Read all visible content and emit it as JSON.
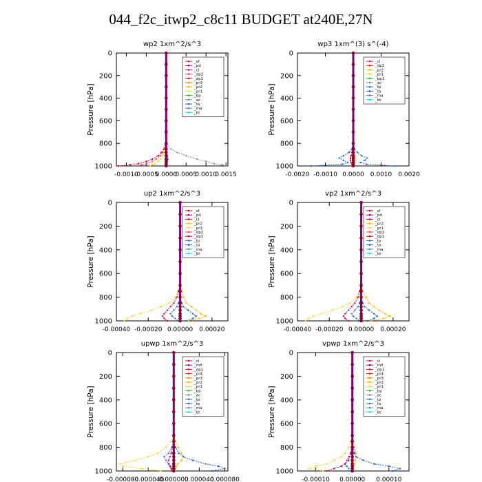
{
  "page_title": "044_f2c_itwp2_c8c11  BUDGET at240E,27N",
  "ylabel": "Pressure [hPa]",
  "y_ticks": [
    0,
    200,
    400,
    600,
    800,
    1000
  ],
  "colors": {
    "_wp2_ta": "#1e5bd8",
    "_wp2_pr": "#ff8c00",
    "_wp2_ac": "#2ecc40",
    "_wp2_dp": "#e0003c",
    "_bt": "#00d8ff",
    "_ma": "#5f7f9f",
    "_tp": "#2f6fd0",
    "_cl": "#e00060",
    "_pd": "#7f007f",
    "_sf": "#c00030",
    "_dp1": "#d4003a",
    "_dp2": "#ff4060",
    "_pr1": "#ffd030",
    "_pr2": "#ffb300",
    "_pr3": "#ff7f00",
    "_pr4": "#ff2000",
    "_bp": "#20c020",
    "_bp1": "#20c020",
    "_mfl": "#800060",
    "_ta": "#1e5bd8"
  },
  "chart_data": [
    {
      "type": "line",
      "title": "wp2   1xm^2/s^3",
      "xlim": [
        -0.00125,
        0.00155
      ],
      "ylim": [
        1000,
        0
      ],
      "xticks": [
        -0.001,
        -0.0005,
        0.0,
        0.0005,
        0.001,
        0.0015
      ],
      "xtick_labels": [
        "-0.0010",
        "-0.0005",
        "0.0000",
        "0.0005",
        "0.0010",
        "0.0015"
      ],
      "pressure": [
        0,
        100,
        200,
        300,
        400,
        500,
        600,
        700,
        800,
        850,
        880,
        910,
        940,
        960,
        980,
        990,
        1000
      ],
      "legend": [
        "_sf",
        "_pd",
        "_cl",
        "_dp2",
        "_dp1",
        "_pr3",
        "_pr2",
        "_pr1",
        "_bp",
        "_ac",
        "_ta",
        "_ma",
        "_bt"
      ],
      "series": [
        {
          "name": "_ac",
          "values": [
            0,
            0,
            0,
            0,
            0,
            0,
            0,
            0,
            2e-05,
            0.00012,
            0.00028,
            0.0005,
            0.00078,
            0.001,
            0.0012,
            0.0014,
            0.0015
          ]
        },
        {
          "name": "_dp1",
          "values": [
            0,
            0,
            0,
            0,
            0,
            0,
            0,
            0,
            -2e-05,
            -6e-05,
            -0.00012,
            -0.0002,
            -0.00035,
            -0.0005,
            -0.0007,
            -0.0009,
            -0.0012
          ]
        },
        {
          "name": "_dp2",
          "values": [
            0,
            0,
            0,
            0,
            0,
            0,
            0,
            0,
            -2e-05,
            -4e-05,
            -8e-05,
            -0.00015,
            -0.00025,
            -0.00035,
            -0.0005,
            -0.00062,
            -0.0007
          ]
        },
        {
          "name": "_pr1",
          "values": [
            0,
            0,
            0,
            0,
            0,
            0,
            0,
            0,
            -1e-05,
            -3e-05,
            -5e-05,
            -9e-05,
            -0.00014,
            -0.0002,
            -0.00028,
            -0.00035,
            -0.0004
          ]
        },
        {
          "name": "_ta",
          "values": [
            0,
            0,
            0,
            0,
            0,
            0,
            0,
            0,
            0,
            1e-05,
            2e-05,
            3e-05,
            4e-05,
            3e-05,
            2e-05,
            1e-05,
            0
          ]
        },
        {
          "name": "_pd",
          "values": [
            0,
            0,
            0,
            0,
            0,
            0,
            0,
            0,
            0,
            0,
            0,
            0,
            0,
            0,
            0,
            0,
            0
          ]
        }
      ]
    },
    {
      "type": "line",
      "title": "wp3   1xm^(3) s^(-4)",
      "xlim": [
        -0.002,
        0.002
      ],
      "ylim": [
        1000,
        0
      ],
      "xticks": [
        -0.002,
        -0.001,
        0.0,
        0.001,
        0.002
      ],
      "xtick_labels": [
        "-0.0020",
        "-0.0010",
        "0.0000",
        "0.0010",
        "0.0020"
      ],
      "pressure": [
        0,
        100,
        200,
        300,
        400,
        500,
        600,
        700,
        800,
        850,
        880,
        910,
        930,
        950,
        970,
        985,
        1000
      ],
      "legend": [
        "_cl",
        "_dp1",
        "_pr2",
        "_pr1",
        "_bp1",
        "_ac",
        "_tp",
        "_ta",
        "_ma",
        "_bt"
      ],
      "series": [
        {
          "name": "_tp",
          "values": [
            0,
            0,
            0,
            0,
            0,
            0,
            0,
            0,
            0,
            5e-05,
            0.00015,
            0.0003,
            0.0005,
            0.00042,
            0.00025,
            0.00048,
            0.0015
          ]
        },
        {
          "name": "_ta",
          "values": [
            0,
            0,
            0,
            0,
            0,
            0,
            0,
            0,
            0,
            -5e-05,
            -0.00015,
            -0.00035,
            -0.0005,
            -0.00035,
            -0.0002,
            -0.0004,
            -0.0015
          ]
        },
        {
          "name": "_dp1",
          "values": [
            0,
            0,
            0,
            0,
            0,
            0,
            0,
            0,
            0,
            -3e-05,
            -5e-05,
            -8e-05,
            -0.0001,
            -0.0001,
            -8e-05,
            -5e-05,
            -3e-05
          ]
        },
        {
          "name": "_pr1",
          "values": [
            0,
            0,
            0,
            0,
            0,
            0,
            0,
            0,
            0,
            2e-05,
            4e-05,
            6e-05,
            8e-05,
            8e-05,
            6e-05,
            4e-05,
            2e-05
          ]
        },
        {
          "name": "_cl",
          "values": [
            0,
            0,
            0,
            0,
            0,
            0,
            0,
            0,
            0,
            0,
            0,
            0,
            0,
            0,
            0,
            0,
            0
          ]
        }
      ]
    },
    {
      "type": "line",
      "title": "up2   1xm^2/s^3",
      "xlim": [
        -0.0004,
        0.0003
      ],
      "ylim": [
        1000,
        0
      ],
      "xticks": [
        -0.0004,
        -0.0002,
        0.0,
        0.0002
      ],
      "xtick_labels": [
        "-0.00040",
        "-0.00020",
        "0.00000",
        "0.00020"
      ],
      "pressure": [
        0,
        100,
        200,
        300,
        400,
        500,
        600,
        700,
        750,
        800,
        850,
        880,
        910,
        940,
        960,
        980,
        1000
      ],
      "legend": [
        "_sf",
        "_pd",
        "_cl",
        "_pr2",
        "_pr1",
        "_dp2",
        "_dp1",
        "_tp",
        "_ta",
        "_ma",
        "_bt"
      ],
      "series": [
        {
          "name": "_pr1",
          "values": [
            0,
            0,
            0,
            0,
            0,
            0,
            0,
            0,
            -1e-05,
            -3e-05,
            -7e-05,
            -0.00012,
            -0.00018,
            -0.00025,
            -0.0003,
            -0.00033,
            -0.00035
          ]
        },
        {
          "name": "_pr2",
          "values": [
            0,
            0,
            0,
            0,
            0,
            0,
            0,
            0,
            1e-05,
            2e-05,
            4e-05,
            7e-05,
            0.0001,
            0.00013,
            0.00016,
            0.00012,
            5e-05
          ]
        },
        {
          "name": "_dp1",
          "values": [
            0,
            0,
            0,
            0,
            0,
            0,
            0,
            0,
            -1e-05,
            -2e-05,
            -4e-05,
            -6e-05,
            -8e-05,
            -0.0001,
            -0.00011,
            -0.0001,
            -8e-05
          ]
        },
        {
          "name": "_ta",
          "values": [
            0,
            0,
            0,
            0,
            0,
            0,
            0,
            0,
            0,
            0,
            1e-05,
            2e-05,
            5e-05,
            8e-05,
            0.0001,
            8e-05,
            4e-05
          ]
        },
        {
          "name": "_tp",
          "values": [
            0,
            0,
            0,
            0,
            0,
            0,
            0,
            0,
            0,
            0,
            -1e-05,
            -2e-05,
            -4e-05,
            -6e-05,
            -5e-05,
            -3e-05,
            -1e-05
          ]
        },
        {
          "name": "_pd",
          "values": [
            0,
            0,
            0,
            0,
            0,
            0,
            0,
            0,
            0,
            0,
            0,
            0,
            0,
            0,
            0,
            0,
            0
          ]
        }
      ]
    },
    {
      "type": "line",
      "title": "vp2   1xm^2/s^3",
      "xlim": [
        -0.0004,
        0.0003
      ],
      "ylim": [
        1000,
        0
      ],
      "xticks": [
        -0.0004,
        -0.0002,
        0.0,
        0.0002
      ],
      "xtick_labels": [
        "-0.00040",
        "-0.00020",
        "0.00000",
        "0.00020"
      ],
      "pressure": [
        0,
        100,
        200,
        300,
        400,
        500,
        600,
        700,
        750,
        800,
        850,
        880,
        910,
        940,
        960,
        980,
        1000
      ],
      "legend": [
        "_sf",
        "_pd",
        "_cl",
        "_pr2",
        "_pr1",
        "_dp2",
        "_dp1",
        "_tp",
        "_ta",
        "_ma",
        "_bt"
      ],
      "series": [
        {
          "name": "_pr1",
          "values": [
            0,
            0,
            0,
            0,
            0,
            0,
            0,
            0,
            -1e-05,
            -3e-05,
            -7e-05,
            -0.00012,
            -0.00018,
            -0.00025,
            -0.0003,
            -0.00033,
            -0.00035
          ]
        },
        {
          "name": "_pr2",
          "values": [
            0,
            0,
            0,
            0,
            0,
            0,
            0,
            0,
            1e-05,
            3e-05,
            5e-05,
            8e-05,
            0.00011,
            0.00015,
            0.00018,
            0.00014,
            6e-05
          ]
        },
        {
          "name": "_dp1",
          "values": [
            0,
            0,
            0,
            0,
            0,
            0,
            0,
            0,
            -1e-05,
            -2e-05,
            -4e-05,
            -6e-05,
            -8e-05,
            -0.0001,
            -0.00011,
            -0.0001,
            -8e-05
          ]
        },
        {
          "name": "_ta",
          "values": [
            0,
            0,
            0,
            0,
            0,
            0,
            0,
            0,
            0,
            0,
            1e-05,
            2e-05,
            5e-05,
            8e-05,
            0.0001,
            8e-05,
            4e-05
          ]
        },
        {
          "name": "_tp",
          "values": [
            0,
            0,
            0,
            0,
            0,
            0,
            0,
            0,
            0,
            0,
            -1e-05,
            -2e-05,
            -4e-05,
            -6e-05,
            -5e-05,
            -3e-05,
            -1e-05
          ]
        },
        {
          "name": "_pd",
          "values": [
            0,
            0,
            0,
            0,
            0,
            0,
            0,
            0,
            0,
            0,
            0,
            0,
            0,
            0,
            0,
            0,
            0
          ]
        }
      ]
    },
    {
      "type": "line",
      "title": "upwp   1xm^2/s^3",
      "xlim": [
        -9e-05,
        8.5e-05
      ],
      "ylim": [
        1000,
        0
      ],
      "xticks": [
        -8e-05,
        -4e-05,
        0.0,
        4e-05,
        8e-05
      ],
      "xtick_labels": [
        "-0.000080",
        "-0.000040",
        "0.000000",
        "0.000040",
        "0.000080"
      ],
      "pressure": [
        0,
        100,
        200,
        300,
        400,
        500,
        600,
        700,
        750,
        800,
        850,
        880,
        910,
        940,
        960,
        980,
        1000
      ],
      "legend": [
        "_cl",
        "_mfl",
        "_dp1",
        "_pr4",
        "_pr3",
        "_pr2",
        "_pr1",
        "_bp",
        "_ac",
        "_tp",
        "_ta",
        "_ma",
        "_bt"
      ],
      "series": [
        {
          "name": "_pr1",
          "values": [
            0,
            0,
            0,
            0,
            0,
            0,
            0,
            0,
            -5e-06,
            -1.2e-05,
            -2.5e-05,
            -4e-05,
            -6e-05,
            -8.5e-05,
            -8e-05,
            -5e-05,
            -2e-05
          ]
        },
        {
          "name": "_pr2",
          "values": [
            0,
            0,
            0,
            0,
            0,
            0,
            0,
            0,
            3e-06,
            7e-06,
            1.2e-05,
            1.5e-05,
            1.2e-05,
            6e-06,
            4e-06,
            3e-06,
            2e-06
          ]
        },
        {
          "name": "_ta",
          "values": [
            0,
            0,
            0,
            0,
            0,
            0,
            0,
            0,
            0,
            3e-06,
            8e-06,
            1.5e-05,
            3e-05,
            5e-05,
            7e-05,
            8e-05,
            6e-05
          ]
        },
        {
          "name": "_tp",
          "values": [
            0,
            0,
            0,
            0,
            0,
            0,
            0,
            0,
            0,
            -3e-06,
            -8e-06,
            -1.5e-05,
            -1.2e-05,
            -8e-06,
            -5e-06,
            -3e-06,
            -2e-06
          ]
        },
        {
          "name": "_dp1",
          "values": [
            0,
            0,
            0,
            0,
            0,
            0,
            0,
            0,
            0,
            -2e-06,
            -4e-06,
            -6e-06,
            -8e-06,
            -8e-06,
            -6e-06,
            -4e-06,
            -3e-06
          ]
        },
        {
          "name": "_mfl",
          "values": [
            0,
            0,
            0,
            0,
            0,
            0,
            0,
            0,
            0,
            0,
            0,
            0,
            0,
            0,
            0,
            0,
            0
          ]
        }
      ]
    },
    {
      "type": "line",
      "title": "vpwp   1xm^2/s^3",
      "xlim": [
        -0.00015,
        0.000155
      ],
      "ylim": [
        1000,
        0
      ],
      "xticks": [
        -0.0001,
        0.0,
        0.0001
      ],
      "xtick_labels": [
        "-0.00010",
        "0.00000",
        "0.00010"
      ],
      "pressure": [
        0,
        100,
        200,
        300,
        400,
        500,
        600,
        700,
        750,
        800,
        850,
        880,
        910,
        940,
        960,
        980,
        1000
      ],
      "legend": [
        "_cl",
        "_mfl",
        "_dp1",
        "_pr4",
        "_pr3",
        "_pr2",
        "_pr1",
        "_bp",
        "_ac",
        "_tp",
        "_ta",
        "_ma",
        "_bt"
      ],
      "series": [
        {
          "name": "_pr1",
          "values": [
            0,
            0,
            0,
            0,
            0,
            0,
            0,
            0,
            -5e-06,
            -1e-05,
            -2e-05,
            -3e-05,
            -5e-05,
            -7e-05,
            -0.0001,
            -0.00012,
            -8e-05
          ]
        },
        {
          "name": "_pr2",
          "values": [
            0,
            0,
            0,
            0,
            0,
            0,
            0,
            0,
            3e-06,
            6e-06,
            1e-05,
            1.2e-05,
            8e-06,
            5e-06,
            4e-06,
            3e-06,
            2e-06
          ]
        },
        {
          "name": "_ta",
          "values": [
            0,
            0,
            0,
            0,
            0,
            0,
            0,
            0,
            0,
            3e-06,
            6e-06,
            1e-05,
            3e-05,
            6e-05,
            0.0001,
            0.00013,
            0.00011
          ]
        },
        {
          "name": "_tp",
          "values": [
            0,
            0,
            0,
            0,
            0,
            0,
            0,
            0,
            0,
            -2e-06,
            -5e-06,
            -1e-05,
            -1.5e-05,
            -2e-05,
            -1.5e-05,
            -1e-05,
            -5e-06
          ]
        },
        {
          "name": "_dp1",
          "values": [
            0,
            0,
            0,
            0,
            0,
            0,
            0,
            0,
            0,
            -2e-06,
            -4e-06,
            -8e-06,
            -1e-05,
            -2e-05,
            -3e-05,
            -5e-05,
            -7e-05
          ]
        },
        {
          "name": "_mfl",
          "values": [
            0,
            0,
            0,
            0,
            0,
            0,
            0,
            0,
            0,
            0,
            0,
            0,
            0,
            0,
            0,
            0,
            0
          ]
        }
      ]
    }
  ]
}
